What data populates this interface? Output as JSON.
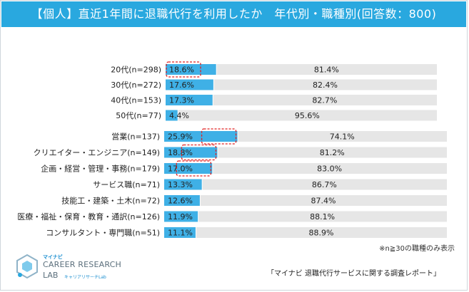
{
  "title": "【個人】直近1年間に退職代行を利用したか　年代別・職種別(回答数：800)",
  "note": "※n≧30の職種のみ表示",
  "source": "「マイナビ 退職代行サービスに関する調査レポート」",
  "logo": {
    "small": "マイナビ",
    "main": "CAREER RESEARCH",
    "lab": "LAB",
    "sub": "キャリアリサーチLab"
  },
  "colors": {
    "title_bg": "#29a8df",
    "used_bar": "#3fb0e6",
    "not_used_bar": "#e6e6e6",
    "highlight_dash": "#e02020"
  },
  "chart_data": {
    "type": "bar",
    "orientation": "horizontal",
    "stacked": true,
    "groups": [
      {
        "name": "age",
        "rows": [
          {
            "label": "20代(n=298)",
            "used": 18.6,
            "not_used": 81.4,
            "highlight": true
          },
          {
            "label": "30代(n=272)",
            "used": 17.6,
            "not_used": 82.4,
            "highlight": false
          },
          {
            "label": "40代(n=153)",
            "used": 17.3,
            "not_used": 82.7,
            "highlight": false
          },
          {
            "label": "50代(n=77)",
            "used": 4.4,
            "not_used": 95.6,
            "highlight": false
          }
        ]
      },
      {
        "name": "occupation",
        "rows": [
          {
            "label": "営業(n=137)",
            "used": 25.9,
            "not_used": 74.1,
            "highlight": true
          },
          {
            "label": "クリエイター・エンジニア(n=149)",
            "used": 18.8,
            "not_used": 81.2,
            "highlight": true
          },
          {
            "label": "企画・経営・管理・事務(n=179)",
            "used": 17.0,
            "not_used": 83.0,
            "highlight": true
          },
          {
            "label": "サービス職(n=71)",
            "used": 13.3,
            "not_used": 86.7,
            "highlight": false
          },
          {
            "label": "技能工・建築・土木(n=72)",
            "used": 12.6,
            "not_used": 87.4,
            "highlight": false
          },
          {
            "label": "医療・福祉・保育・教育・通訳(n=126)",
            "used": 11.9,
            "not_used": 88.1,
            "highlight": false
          },
          {
            "label": "コンサルタント・専門職(n=51)",
            "used": 11.1,
            "not_used": 88.9,
            "highlight": false
          }
        ]
      }
    ],
    "xlim": [
      0,
      100
    ]
  }
}
